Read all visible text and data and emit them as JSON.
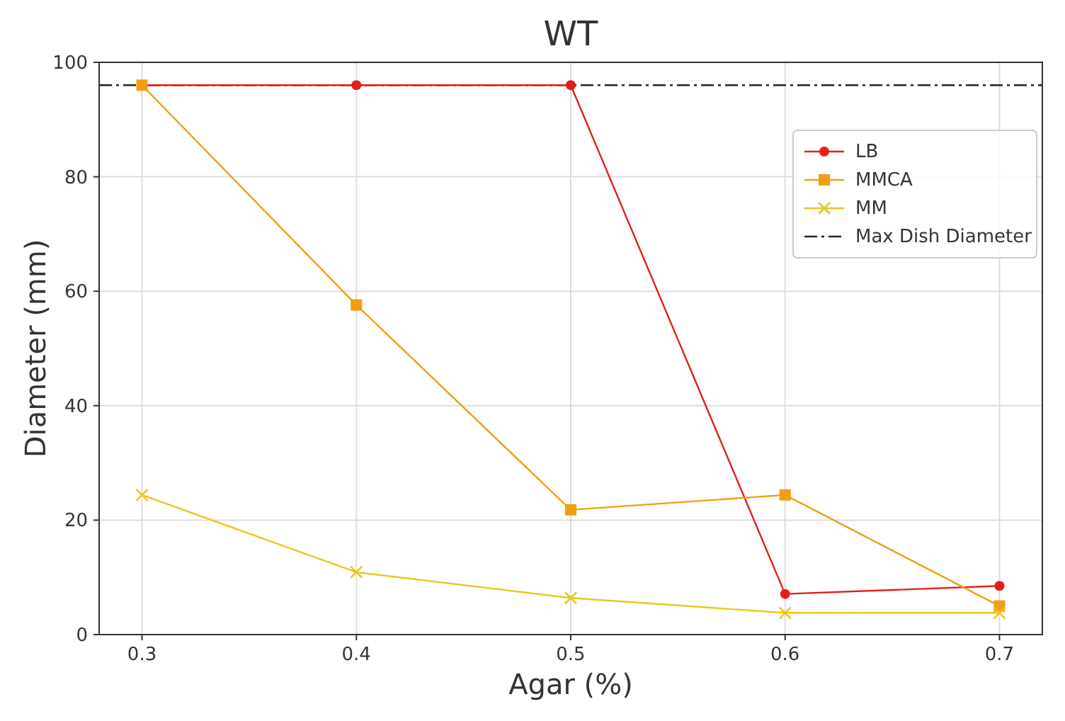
{
  "chart_data": {
    "type": "line",
    "title": "WT",
    "xlabel": "Agar (%)",
    "ylabel": "Diameter (mm)",
    "x": [
      0.3,
      0.4,
      0.5,
      0.6,
      0.7
    ],
    "series": [
      {
        "name": "LB",
        "color": "#e0201a",
        "marker": "circle",
        "values": [
          96,
          96,
          96,
          7.1,
          8.5
        ]
      },
      {
        "name": "MMCA",
        "color": "#f29e12",
        "marker": "square",
        "values": [
          96,
          57.6,
          21.8,
          24.4,
          5
        ]
      },
      {
        "name": "MM",
        "color": "#e8c81c",
        "marker": "cross",
        "values": [
          24.4,
          10.9,
          6.4,
          3.8,
          3.8
        ]
      }
    ],
    "ref_lines": [
      {
        "axis": "y",
        "value": 96,
        "label": "Max Dish Diameter",
        "color": "#222222",
        "line_style": "dashed"
      }
    ],
    "xlim": [
      0.28,
      0.72
    ],
    "xticks": [
      0.3,
      0.4,
      0.5,
      0.6,
      0.7
    ],
    "ylim": [
      0,
      100
    ],
    "yticks": [
      0,
      20,
      40,
      60,
      80,
      100
    ],
    "grid": true,
    "legend": "top right"
  }
}
